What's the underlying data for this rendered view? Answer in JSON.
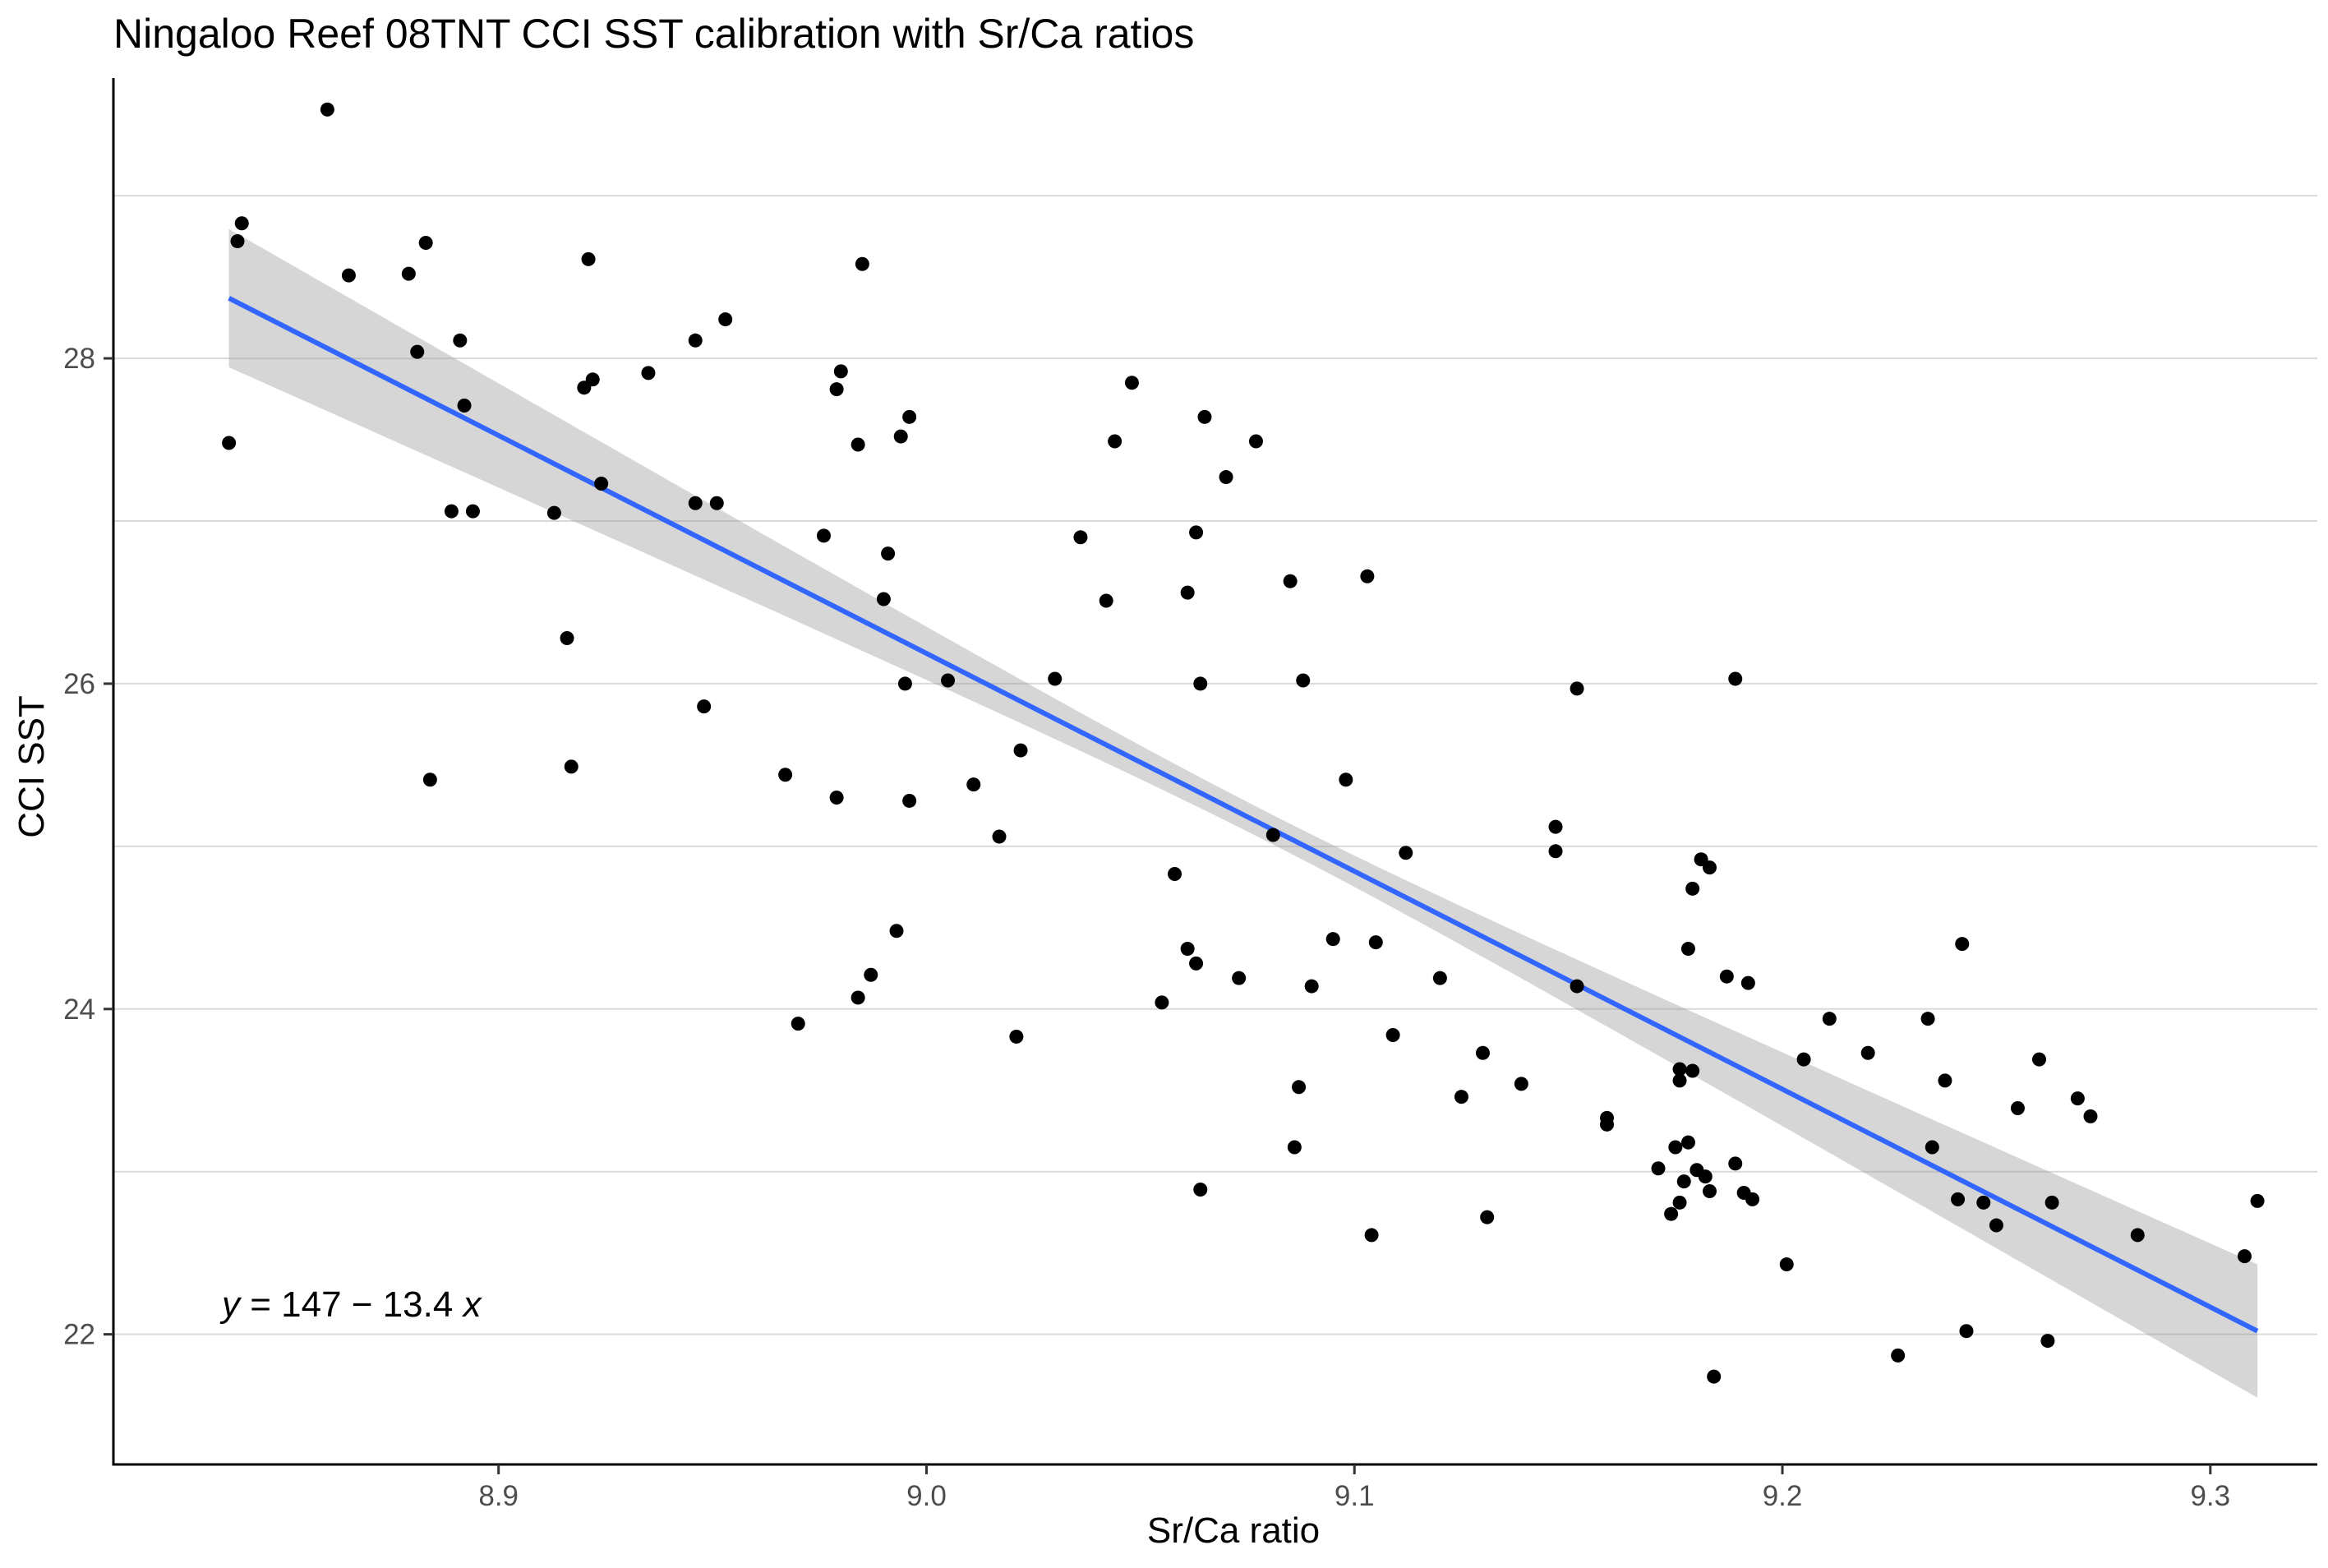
{
  "chart_data": {
    "type": "scatter",
    "title": "Ningaloo Reef 08TNT CCI SST calibration with Sr/Ca ratios",
    "xlabel": "Sr/Ca ratio",
    "ylabel": "CCI SST",
    "xlim": [
      8.81,
      9.325
    ],
    "ylim": [
      21.2,
      29.9
    ],
    "xticks": [
      8.9,
      9.0,
      9.1,
      9.2,
      9.3
    ],
    "xtick_labels": [
      "8.9",
      "9.0",
      "9.1",
      "9.2",
      "9.3"
    ],
    "yticks": [
      22,
      24,
      26,
      28
    ],
    "ytick_labels": [
      "22",
      "24",
      "26",
      "28"
    ],
    "grid": "horizontal major and minor lines only",
    "legend": "none",
    "equation": "y = 147 − 13.4 x",
    "regression": {
      "intercept": 147,
      "slope": -13.4,
      "x_range": [
        8.837,
        9.311
      ],
      "fit_endpoints": [
        28.37,
        22.02
      ],
      "ci_lower_endpoints": [
        27.93,
        21.61
      ],
      "ci_upper_endpoints": [
        28.78,
        22.43
      ],
      "ci_center_half_width": 0.09,
      "ci_center_x": 9.08,
      "line_color": "#3366FF",
      "band_color": "#999999"
    },
    "point_color": "#000000",
    "points": [
      [
        8.837,
        27.48
      ],
      [
        8.839,
        28.72
      ],
      [
        8.84,
        28.83
      ],
      [
        8.86,
        29.53
      ],
      [
        8.865,
        28.51
      ],
      [
        8.879,
        28.52
      ],
      [
        8.881,
        28.04
      ],
      [
        8.883,
        28.71
      ],
      [
        8.884,
        25.41
      ],
      [
        8.889,
        27.06
      ],
      [
        8.891,
        28.11
      ],
      [
        8.892,
        27.71
      ],
      [
        8.894,
        27.06
      ],
      [
        8.913,
        27.05
      ],
      [
        8.916,
        26.28
      ],
      [
        8.917,
        25.49
      ],
      [
        8.92,
        27.82
      ],
      [
        8.921,
        28.61
      ],
      [
        8.922,
        27.87
      ],
      [
        8.924,
        27.23
      ],
      [
        8.935,
        27.91
      ],
      [
        8.946,
        27.11
      ],
      [
        8.946,
        28.11
      ],
      [
        8.948,
        25.86
      ],
      [
        8.951,
        27.11
      ],
      [
        8.953,
        28.24
      ],
      [
        8.967,
        25.44
      ],
      [
        8.97,
        23.91
      ],
      [
        8.976,
        26.91
      ],
      [
        8.979,
        25.3
      ],
      [
        8.979,
        27.81
      ],
      [
        8.98,
        27.92
      ],
      [
        8.984,
        27.47
      ],
      [
        8.984,
        24.07
      ],
      [
        8.985,
        28.58
      ],
      [
        8.987,
        24.21
      ],
      [
        8.99,
        26.52
      ],
      [
        8.991,
        26.8
      ],
      [
        8.993,
        24.48
      ],
      [
        8.994,
        27.52
      ],
      [
        8.995,
        26.0
      ],
      [
        8.996,
        27.64
      ],
      [
        8.996,
        25.28
      ],
      [
        9.005,
        26.02
      ],
      [
        9.011,
        25.38
      ],
      [
        9.017,
        25.06
      ],
      [
        9.021,
        23.83
      ],
      [
        9.022,
        25.59
      ],
      [
        9.03,
        26.03
      ],
      [
        9.036,
        26.9
      ],
      [
        9.042,
        26.51
      ],
      [
        9.044,
        27.49
      ],
      [
        9.048,
        27.85
      ],
      [
        9.055,
        24.04
      ],
      [
        9.058,
        24.83
      ],
      [
        9.061,
        24.37
      ],
      [
        9.061,
        26.56
      ],
      [
        9.063,
        24.28
      ],
      [
        9.063,
        26.93
      ],
      [
        9.064,
        22.89
      ],
      [
        9.064,
        26.0
      ],
      [
        9.065,
        27.64
      ],
      [
        9.07,
        27.27
      ],
      [
        9.073,
        24.19
      ],
      [
        9.077,
        27.49
      ],
      [
        9.081,
        25.07
      ],
      [
        9.085,
        26.63
      ],
      [
        9.086,
        23.15
      ],
      [
        9.087,
        23.52
      ],
      [
        9.088,
        26.02
      ],
      [
        9.09,
        24.14
      ],
      [
        9.095,
        24.43
      ],
      [
        9.098,
        25.41
      ],
      [
        9.103,
        26.66
      ],
      [
        9.104,
        22.61
      ],
      [
        9.105,
        24.41
      ],
      [
        9.109,
        23.84
      ],
      [
        9.112,
        24.96
      ],
      [
        9.12,
        24.19
      ],
      [
        9.125,
        23.46
      ],
      [
        9.13,
        23.73
      ],
      [
        9.131,
        22.72
      ],
      [
        9.139,
        23.54
      ],
      [
        9.147,
        25.12
      ],
      [
        9.147,
        24.97
      ],
      [
        9.152,
        24.14
      ],
      [
        9.152,
        25.97
      ],
      [
        9.159,
        23.33
      ],
      [
        9.159,
        23.29
      ],
      [
        9.171,
        23.02
      ],
      [
        9.174,
        22.74
      ],
      [
        9.175,
        23.15
      ],
      [
        9.176,
        22.81
      ],
      [
        9.176,
        23.63
      ],
      [
        9.176,
        23.56
      ],
      [
        9.177,
        22.94
      ],
      [
        9.178,
        24.37
      ],
      [
        9.178,
        23.18
      ],
      [
        9.179,
        24.74
      ],
      [
        9.179,
        23.62
      ],
      [
        9.18,
        23.01
      ],
      [
        9.181,
        24.92
      ],
      [
        9.182,
        22.97
      ],
      [
        9.183,
        24.87
      ],
      [
        9.183,
        22.88
      ],
      [
        9.184,
        21.74
      ],
      [
        9.187,
        24.2
      ],
      [
        9.189,
        26.03
      ],
      [
        9.189,
        23.05
      ],
      [
        9.191,
        22.87
      ],
      [
        9.192,
        24.16
      ],
      [
        9.193,
        22.83
      ],
      [
        9.201,
        22.43
      ],
      [
        9.205,
        23.69
      ],
      [
        9.211,
        23.94
      ],
      [
        9.22,
        23.73
      ],
      [
        9.227,
        21.87
      ],
      [
        9.234,
        23.94
      ],
      [
        9.235,
        23.15
      ],
      [
        9.238,
        23.56
      ],
      [
        9.241,
        22.83
      ],
      [
        9.242,
        24.4
      ],
      [
        9.243,
        22.02
      ],
      [
        9.247,
        22.81
      ],
      [
        9.25,
        22.67
      ],
      [
        9.255,
        23.39
      ],
      [
        9.26,
        23.69
      ],
      [
        9.262,
        21.96
      ],
      [
        9.263,
        22.81
      ],
      [
        9.269,
        23.45
      ],
      [
        9.272,
        23.34
      ],
      [
        9.283,
        22.61
      ],
      [
        9.308,
        22.48
      ],
      [
        9.311,
        22.82
      ]
    ]
  }
}
